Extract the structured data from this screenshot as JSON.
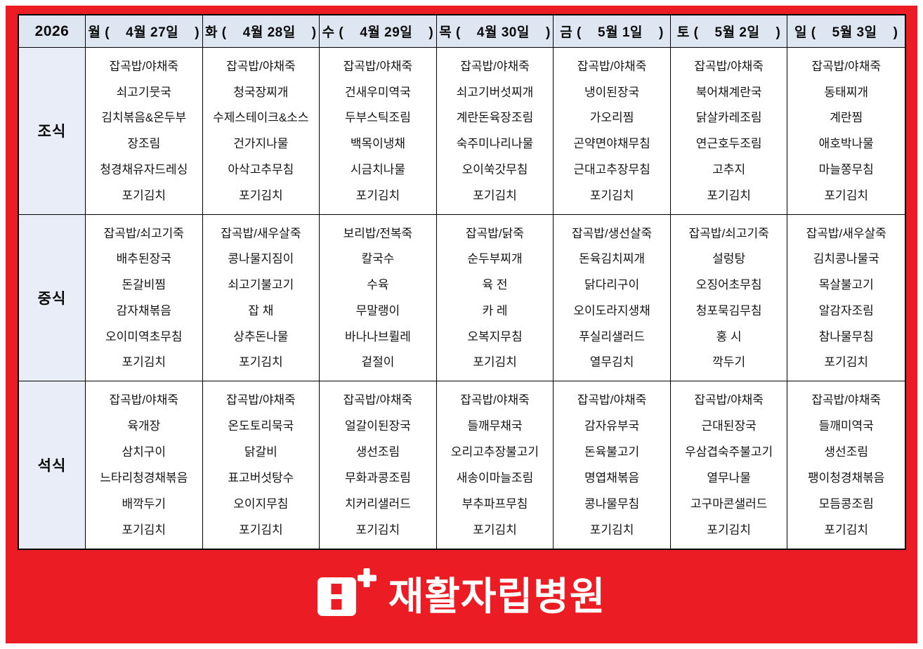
{
  "colors": {
    "accent_red": "#EB1C23",
    "header_bg": "#DEE6F2",
    "label_bg": "#E8EDF7",
    "grid_line": "#000000"
  },
  "header": {
    "year": "2026",
    "days": [
      "월 (    4월 27일    )",
      "화 (    4월 28일    )",
      "수 (    4월 29일    )",
      "목 (    4월 30일    )",
      "금 (    5월 1일    )",
      "토 (    5월 2일    )",
      "일 (    5월 3일    )"
    ]
  },
  "meals": [
    {
      "label": "조식",
      "days": [
        [
          "잡곡밥/야채죽",
          "쇠고기뭇국",
          "김치볶음&온두부",
          "장조림",
          "청경채유자드레싱",
          "포기김치"
        ],
        [
          "잡곡밥/야채죽",
          "청국장찌개",
          "수제스테이크&소스",
          "건가지나물",
          "아삭고추무침",
          "포기김치"
        ],
        [
          "잡곡밥/야채죽",
          "건새우미역국",
          "두부스틱조림",
          "백목이냉채",
          "시금치나물",
          "포기김치"
        ],
        [
          "잡곡밥/야채죽",
          "쇠고기버섯찌개",
          "계란돈육장조림",
          "숙주미나리나물",
          "오이쑥갓무침",
          "포기김치"
        ],
        [
          "잡곡밥/야채죽",
          "냉이된장국",
          "가오리찜",
          "곤약면야채무침",
          "근대고추장무침",
          "포기김치"
        ],
        [
          "잡곡밥/야채죽",
          "북어채계란국",
          "닭살카레조림",
          "연근호두조림",
          "고추지",
          "포기김치"
        ],
        [
          "잡곡밥/야채죽",
          "동태찌개",
          "계란찜",
          "애호박나물",
          "마늘쫑무침",
          "포기김치"
        ]
      ]
    },
    {
      "label": "중식",
      "days": [
        [
          "잡곡밥/쇠고기죽",
          "배추된장국",
          "돈갈비찜",
          "감자채볶음",
          "오이미역초무침",
          "포기김치"
        ],
        [
          "잡곡밥/새우살죽",
          "콩나물지짐이",
          "쇠고기불고기",
          "잡 채",
          "상추돈나물",
          "포기김치"
        ],
        [
          "보리밥/전복죽",
          "칼국수",
          "수육",
          "무말랭이",
          "바나나브륄레",
          "겉절이"
        ],
        [
          "잡곡밥/닭죽",
          "순두부찌개",
          "육 전",
          "카 레",
          "오복지무침",
          "포기김치"
        ],
        [
          "잡곡밥/생선살죽",
          "돈육김치찌개",
          "닭다리구이",
          "오이도라지생채",
          "푸실리샐러드",
          "열무김치"
        ],
        [
          "잡곡밥/쇠고기죽",
          "설렁탕",
          "오징어초무침",
          "청포묵김무침",
          "홍 시",
          "깍두기"
        ],
        [
          "잡곡밥/새우살죽",
          "김치콩나물국",
          "목살불고기",
          "알감자조림",
          "참나물무침",
          "포기김치"
        ]
      ]
    },
    {
      "label": "석식",
      "days": [
        [
          "잡곡밥/야채죽",
          "육개장",
          "삼치구이",
          "느타리청경채볶음",
          "배깍두기",
          "포기김치"
        ],
        [
          "잡곡밥/야채죽",
          "온도토리묵국",
          "닭갈비",
          "표고버섯탕수",
          "오이지무침",
          "포기김치"
        ],
        [
          "잡곡밥/야채죽",
          "얼갈이된장국",
          "생선조림",
          "무화과콩조림",
          "치커리샐러드",
          "포기김치"
        ],
        [
          "잡곡밥/야채죽",
          "들깨무채국",
          "오리고추장불고기",
          "새송이마늘조림",
          "부추파프무침",
          "포기김치"
        ],
        [
          "잡곡밥/야채죽",
          "감자유부국",
          "돈육불고기",
          "명엽채볶음",
          "콩나물무침",
          "포기김치"
        ],
        [
          "잡곡밥/야채죽",
          "근대된장국",
          "우삼겹숙주불고기",
          "열무나물",
          "고구마콘샐러드",
          "포기김치"
        ],
        [
          "잡곡밥/야채죽",
          "들깨미역국",
          "생선조림",
          "팽이청경채볶음",
          "모듬콩조림",
          "포기김치"
        ]
      ]
    }
  ],
  "logo": {
    "text": "재활자립병원"
  }
}
